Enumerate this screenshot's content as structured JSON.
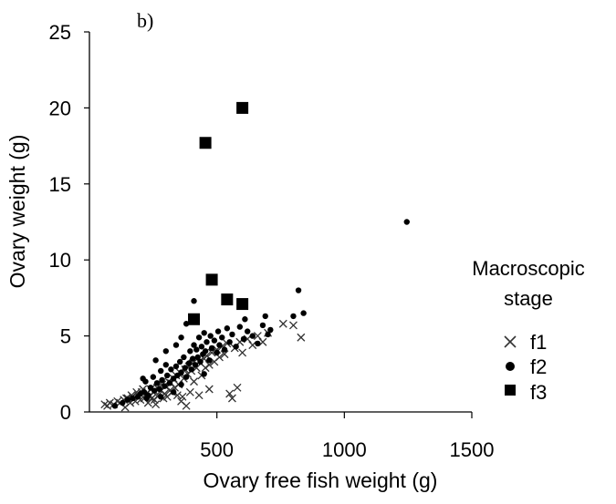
{
  "chart_data": {
    "type": "scatter",
    "panel_label": "b)",
    "title": "",
    "xlabel": "Ovary free fish weight (g)",
    "ylabel": "Ovary weight (g)",
    "xlim": [
      0,
      1500
    ],
    "ylim": [
      0,
      25
    ],
    "xticks": [
      500,
      1000,
      1500
    ],
    "yticks": [
      0,
      5,
      10,
      15,
      20,
      25
    ],
    "grid": false,
    "legend": {
      "title_lines": [
        "Macroscopic",
        "stage"
      ],
      "placement": "right",
      "entries": [
        "f1",
        "f2",
        "f3"
      ]
    },
    "series": [
      {
        "name": "f1",
        "marker": "x",
        "color": "#333333",
        "points": [
          [
            60,
            0.5
          ],
          [
            70,
            0.4
          ],
          [
            80,
            0.6
          ],
          [
            95,
            0.5
          ],
          [
            110,
            0.7
          ],
          [
            120,
            0.6
          ],
          [
            135,
            0.8
          ],
          [
            140,
            0.3
          ],
          [
            150,
            0.9
          ],
          [
            160,
            0.6
          ],
          [
            170,
            1.0
          ],
          [
            180,
            0.7
          ],
          [
            190,
            1.1
          ],
          [
            200,
            0.8
          ],
          [
            205,
            1.3
          ],
          [
            215,
            0.9
          ],
          [
            225,
            1.2
          ],
          [
            235,
            1.0
          ],
          [
            240,
            1.5
          ],
          [
            250,
            1.3
          ],
          [
            255,
            0.8
          ],
          [
            265,
            1.6
          ],
          [
            270,
            1.1
          ],
          [
            280,
            1.4
          ],
          [
            285,
            1.8
          ],
          [
            295,
            1.2
          ],
          [
            300,
            1.7
          ],
          [
            310,
            2.0
          ],
          [
            315,
            1.4
          ],
          [
            320,
            1.9
          ],
          [
            330,
            2.2
          ],
          [
            335,
            1.6
          ],
          [
            340,
            2.4
          ],
          [
            350,
            1.8
          ],
          [
            355,
            2.6
          ],
          [
            360,
            0.7
          ],
          [
            365,
            1.0
          ],
          [
            370,
            2.2
          ],
          [
            375,
            2.8
          ],
          [
            380,
            0.4
          ],
          [
            385,
            2.5
          ],
          [
            390,
            3.0
          ],
          [
            395,
            1.3
          ],
          [
            400,
            2.7
          ],
          [
            405,
            3.2
          ],
          [
            410,
            2.0
          ],
          [
            420,
            2.9
          ],
          [
            430,
            3.3
          ],
          [
            440,
            2.4
          ],
          [
            450,
            3.5
          ],
          [
            455,
            2.9
          ],
          [
            460,
            3.7
          ],
          [
            470,
            3.1
          ],
          [
            480,
            3.9
          ],
          [
            490,
            3.3
          ],
          [
            500,
            4.1
          ],
          [
            510,
            3.6
          ],
          [
            520,
            4.3
          ],
          [
            530,
            3.8
          ],
          [
            540,
            4.5
          ],
          [
            550,
            1.2
          ],
          [
            560,
            0.9
          ],
          [
            570,
            4.2
          ],
          [
            580,
            1.6
          ],
          [
            590,
            4.6
          ],
          [
            600,
            3.9
          ],
          [
            620,
            4.8
          ],
          [
            640,
            4.4
          ],
          [
            660,
            5.0
          ],
          [
            680,
            4.6
          ],
          [
            700,
            5.2
          ],
          [
            230,
            0.6
          ],
          [
            245,
            0.9
          ],
          [
            260,
            0.5
          ],
          [
            290,
            0.9
          ],
          [
            305,
            1.0
          ],
          [
            325,
            1.3
          ],
          [
            345,
            1.1
          ],
          [
            210,
            1.5
          ],
          [
            185,
            1.3
          ],
          [
            165,
            1.1
          ],
          [
            145,
            0.9
          ],
          [
            760,
            5.8
          ],
          [
            800,
            5.7
          ],
          [
            830,
            4.9
          ],
          [
            470,
            1.5
          ],
          [
            430,
            1.1
          ]
        ]
      },
      {
        "name": "f2",
        "marker": "circle",
        "color": "#000000",
        "points": [
          [
            100,
            0.4
          ],
          [
            130,
            0.6
          ],
          [
            150,
            0.8
          ],
          [
            170,
            0.9
          ],
          [
            190,
            1.0
          ],
          [
            200,
            1.2
          ],
          [
            215,
            1.3
          ],
          [
            230,
            1.1
          ],
          [
            240,
            1.6
          ],
          [
            255,
            1.4
          ],
          [
            265,
            1.9
          ],
          [
            275,
            1.5
          ],
          [
            285,
            2.1
          ],
          [
            295,
            1.7
          ],
          [
            305,
            2.4
          ],
          [
            315,
            1.9
          ],
          [
            320,
            2.8
          ],
          [
            330,
            2.2
          ],
          [
            340,
            3.0
          ],
          [
            345,
            2.4
          ],
          [
            355,
            3.3
          ],
          [
            360,
            2.6
          ],
          [
            370,
            3.6
          ],
          [
            375,
            2.9
          ],
          [
            380,
            2.3
          ],
          [
            390,
            3.2
          ],
          [
            395,
            4.0
          ],
          [
            400,
            2.8
          ],
          [
            405,
            3.5
          ],
          [
            410,
            4.4
          ],
          [
            415,
            3.1
          ],
          [
            420,
            4.1
          ],
          [
            425,
            3.6
          ],
          [
            430,
            4.9
          ],
          [
            435,
            3.3
          ],
          [
            440,
            4.3
          ],
          [
            445,
            3.8
          ],
          [
            450,
            5.2
          ],
          [
            455,
            4.0
          ],
          [
            460,
            4.6
          ],
          [
            470,
            3.4
          ],
          [
            475,
            5.0
          ],
          [
            480,
            4.2
          ],
          [
            490,
            4.7
          ],
          [
            500,
            3.9
          ],
          [
            505,
            5.3
          ],
          [
            510,
            4.4
          ],
          [
            520,
            4.9
          ],
          [
            530,
            4.1
          ],
          [
            540,
            5.5
          ],
          [
            550,
            4.6
          ],
          [
            560,
            5.1
          ],
          [
            575,
            4.3
          ],
          [
            590,
            5.6
          ],
          [
            605,
            4.8
          ],
          [
            620,
            5.3
          ],
          [
            640,
            5.0
          ],
          [
            660,
            4.5
          ],
          [
            300,
            3.1
          ],
          [
            280,
            2.7
          ],
          [
            250,
            2.3
          ],
          [
            220,
            2.0
          ],
          [
            410,
            7.3
          ],
          [
            380,
            5.8
          ],
          [
            300,
            4.0
          ],
          [
            210,
            2.2
          ],
          [
            260,
            3.4
          ],
          [
            340,
            4.4
          ],
          [
            360,
            4.9
          ],
          [
            610,
            6.1
          ],
          [
            680,
            5.7
          ],
          [
            690,
            6.3
          ],
          [
            710,
            5.4
          ],
          [
            700,
            5.1
          ],
          [
            820,
            8.0
          ],
          [
            800,
            6.3
          ],
          [
            840,
            6.5
          ],
          [
            1245,
            12.5
          ],
          [
            450,
            2.5
          ],
          [
            360,
            1.8
          ],
          [
            330,
            1.3
          ],
          [
            280,
            1.0
          ],
          [
            225,
            0.9
          ]
        ]
      },
      {
        "name": "f3",
        "marker": "square",
        "color": "#000000",
        "points": [
          [
            455,
            17.7
          ],
          [
            600,
            20.0
          ],
          [
            480,
            8.7
          ],
          [
            540,
            7.4
          ],
          [
            600,
            7.1
          ],
          [
            410,
            6.1
          ]
        ]
      }
    ]
  }
}
